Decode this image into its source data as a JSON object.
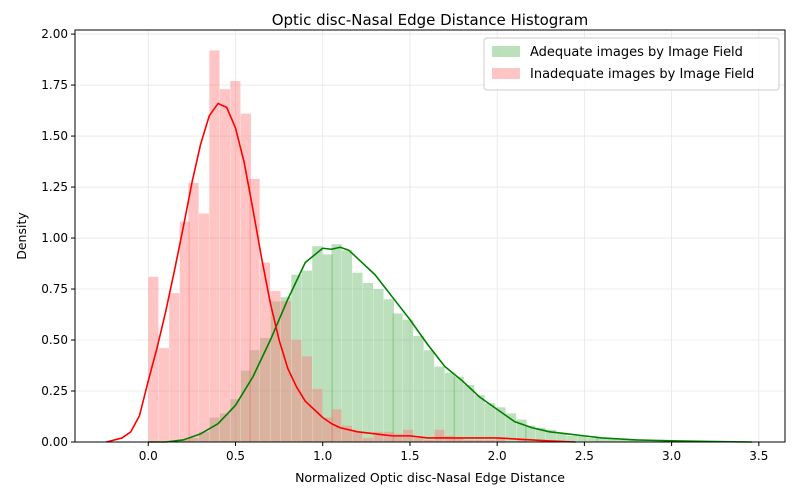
{
  "chart_data": {
    "type": "histogram",
    "title": "Optic disc-Nasal Edge Distance Histogram",
    "xlabel": "Normalized Optic disc-Nasal Edge Distance",
    "ylabel": "Density",
    "xlim": [
      -0.42,
      3.65
    ],
    "ylim": [
      0,
      2.02
    ],
    "x_ticks": [
      "0.0",
      "0.5",
      "1.0",
      "1.5",
      "2.0",
      "2.5",
      "3.0",
      "3.5"
    ],
    "y_ticks": [
      "0.00",
      "0.25",
      "0.50",
      "0.75",
      "1.00",
      "1.25",
      "1.50",
      "1.75",
      "2.00"
    ],
    "grid": true,
    "legend_position": "upper right",
    "series": [
      {
        "name": "Adequate images by Image Field",
        "hist_color": "#6ab76a",
        "kde_color": "#008000",
        "bin_width": 0.0585,
        "bins": [
          [
            0.0,
            0.0
          ],
          [
            0.06,
            0.0
          ],
          [
            0.12,
            0.0
          ],
          [
            0.18,
            0.01
          ],
          [
            0.23,
            0.02
          ],
          [
            0.29,
            0.05
          ],
          [
            0.35,
            0.12
          ],
          [
            0.41,
            0.14
          ],
          [
            0.47,
            0.21
          ],
          [
            0.53,
            0.35
          ],
          [
            0.58,
            0.45
          ],
          [
            0.64,
            0.51
          ],
          [
            0.7,
            0.69
          ],
          [
            0.76,
            0.71
          ],
          [
            0.82,
            0.82
          ],
          [
            0.88,
            0.84
          ],
          [
            0.94,
            0.96
          ],
          [
            1.0,
            0.92
          ],
          [
            1.05,
            0.97
          ],
          [
            1.11,
            0.94
          ],
          [
            1.17,
            0.83
          ],
          [
            1.23,
            0.78
          ],
          [
            1.29,
            0.75
          ],
          [
            1.35,
            0.7
          ],
          [
            1.4,
            0.63
          ],
          [
            1.46,
            0.6
          ],
          [
            1.52,
            0.52
          ],
          [
            1.58,
            0.45
          ],
          [
            1.64,
            0.37
          ],
          [
            1.7,
            0.34
          ],
          [
            1.75,
            0.32
          ],
          [
            1.81,
            0.28
          ],
          [
            1.87,
            0.23
          ],
          [
            1.93,
            0.19
          ],
          [
            1.99,
            0.17
          ],
          [
            2.05,
            0.14
          ],
          [
            2.11,
            0.11
          ],
          [
            2.16,
            0.08
          ],
          [
            2.22,
            0.07
          ],
          [
            2.28,
            0.06
          ],
          [
            2.34,
            0.04
          ],
          [
            2.4,
            0.03
          ],
          [
            2.46,
            0.03
          ],
          [
            2.52,
            0.02
          ],
          [
            2.57,
            0.02
          ],
          [
            2.63,
            0.02
          ],
          [
            2.69,
            0.01
          ],
          [
            2.75,
            0.01
          ],
          [
            2.81,
            0.01
          ],
          [
            2.87,
            0.01
          ],
          [
            2.93,
            0.01
          ],
          [
            2.98,
            0.005
          ],
          [
            3.04,
            0.005
          ],
          [
            3.1,
            0.005
          ],
          [
            3.16,
            0.0
          ],
          [
            3.22,
            0.0
          ],
          [
            3.28,
            0.0
          ],
          [
            3.34,
            0.0
          ],
          [
            3.39,
            0.0
          ],
          [
            3.45,
            0.0
          ]
        ],
        "kde": [
          [
            0.0,
            0.0
          ],
          [
            0.1,
            0.0
          ],
          [
            0.2,
            0.01
          ],
          [
            0.3,
            0.04
          ],
          [
            0.4,
            0.09
          ],
          [
            0.5,
            0.18
          ],
          [
            0.6,
            0.32
          ],
          [
            0.7,
            0.5
          ],
          [
            0.8,
            0.7
          ],
          [
            0.9,
            0.88
          ],
          [
            1.0,
            0.95
          ],
          [
            1.05,
            0.945
          ],
          [
            1.1,
            0.955
          ],
          [
            1.15,
            0.94
          ],
          [
            1.2,
            0.9
          ],
          [
            1.3,
            0.82
          ],
          [
            1.4,
            0.71
          ],
          [
            1.5,
            0.6
          ],
          [
            1.6,
            0.48
          ],
          [
            1.7,
            0.37
          ],
          [
            1.8,
            0.3
          ],
          [
            1.9,
            0.22
          ],
          [
            2.0,
            0.16
          ],
          [
            2.1,
            0.1
          ],
          [
            2.2,
            0.07
          ],
          [
            2.3,
            0.05
          ],
          [
            2.4,
            0.04
          ],
          [
            2.5,
            0.03
          ],
          [
            2.6,
            0.02
          ],
          [
            2.7,
            0.015
          ],
          [
            2.8,
            0.01
          ],
          [
            2.9,
            0.008
          ],
          [
            3.0,
            0.006
          ],
          [
            3.2,
            0.003
          ],
          [
            3.46,
            0.0
          ]
        ]
      },
      {
        "name": "Inadequate images by Image Field",
        "hist_color": "#ff7f7f",
        "kde_color": "#ff0000",
        "bin_width": 0.0585,
        "bins": [
          [
            0.0,
            0.81
          ],
          [
            0.06,
            0.46
          ],
          [
            0.12,
            0.73
          ],
          [
            0.18,
            1.08
          ],
          [
            0.23,
            1.27
          ],
          [
            0.29,
            1.12
          ],
          [
            0.35,
            1.92
          ],
          [
            0.41,
            1.73
          ],
          [
            0.47,
            1.77
          ],
          [
            0.53,
            1.61
          ],
          [
            0.58,
            1.29
          ],
          [
            0.64,
            0.88
          ],
          [
            0.7,
            0.74
          ],
          [
            0.76,
            0.69
          ],
          [
            0.82,
            0.5
          ],
          [
            0.88,
            0.42
          ],
          [
            0.94,
            0.26
          ],
          [
            1.0,
            0.12
          ],
          [
            1.05,
            0.16
          ],
          [
            1.11,
            0.08
          ],
          [
            1.17,
            0.05
          ],
          [
            1.23,
            0.02
          ],
          [
            1.29,
            0.05
          ],
          [
            1.35,
            0.05
          ],
          [
            1.4,
            0.04
          ],
          [
            1.46,
            0.06
          ],
          [
            1.52,
            0.02
          ],
          [
            1.58,
            0.01
          ],
          [
            1.64,
            0.06
          ],
          [
            1.7,
            0.03
          ],
          [
            1.75,
            0.02
          ],
          [
            1.81,
            0.01
          ],
          [
            1.87,
            0.01
          ],
          [
            1.93,
            0.01
          ],
          [
            1.99,
            0.02
          ],
          [
            2.05,
            0.0
          ],
          [
            2.11,
            0.01
          ],
          [
            2.16,
            0.0
          ],
          [
            2.22,
            0.01
          ],
          [
            2.28,
            0.0
          ]
        ],
        "kde": [
          [
            -0.24,
            0.0
          ],
          [
            -0.15,
            0.02
          ],
          [
            -0.1,
            0.05
          ],
          [
            -0.05,
            0.13
          ],
          [
            0.0,
            0.3
          ],
          [
            0.05,
            0.46
          ],
          [
            0.1,
            0.64
          ],
          [
            0.15,
            0.84
          ],
          [
            0.2,
            1.05
          ],
          [
            0.25,
            1.27
          ],
          [
            0.3,
            1.46
          ],
          [
            0.35,
            1.6
          ],
          [
            0.4,
            1.66
          ],
          [
            0.45,
            1.64
          ],
          [
            0.5,
            1.54
          ],
          [
            0.55,
            1.37
          ],
          [
            0.6,
            1.14
          ],
          [
            0.65,
            0.9
          ],
          [
            0.7,
            0.68
          ],
          [
            0.75,
            0.5
          ],
          [
            0.8,
            0.36
          ],
          [
            0.85,
            0.27
          ],
          [
            0.9,
            0.2
          ],
          [
            0.95,
            0.16
          ],
          [
            1.0,
            0.12
          ],
          [
            1.05,
            0.09
          ],
          [
            1.1,
            0.07
          ],
          [
            1.2,
            0.05
          ],
          [
            1.3,
            0.04
          ],
          [
            1.4,
            0.03
          ],
          [
            1.5,
            0.03
          ],
          [
            1.6,
            0.02
          ],
          [
            1.7,
            0.02
          ],
          [
            1.8,
            0.02
          ],
          [
            1.9,
            0.02
          ],
          [
            2.0,
            0.02
          ],
          [
            2.1,
            0.015
          ],
          [
            2.2,
            0.01
          ],
          [
            2.3,
            0.005
          ],
          [
            2.45,
            0.0
          ]
        ]
      }
    ]
  }
}
